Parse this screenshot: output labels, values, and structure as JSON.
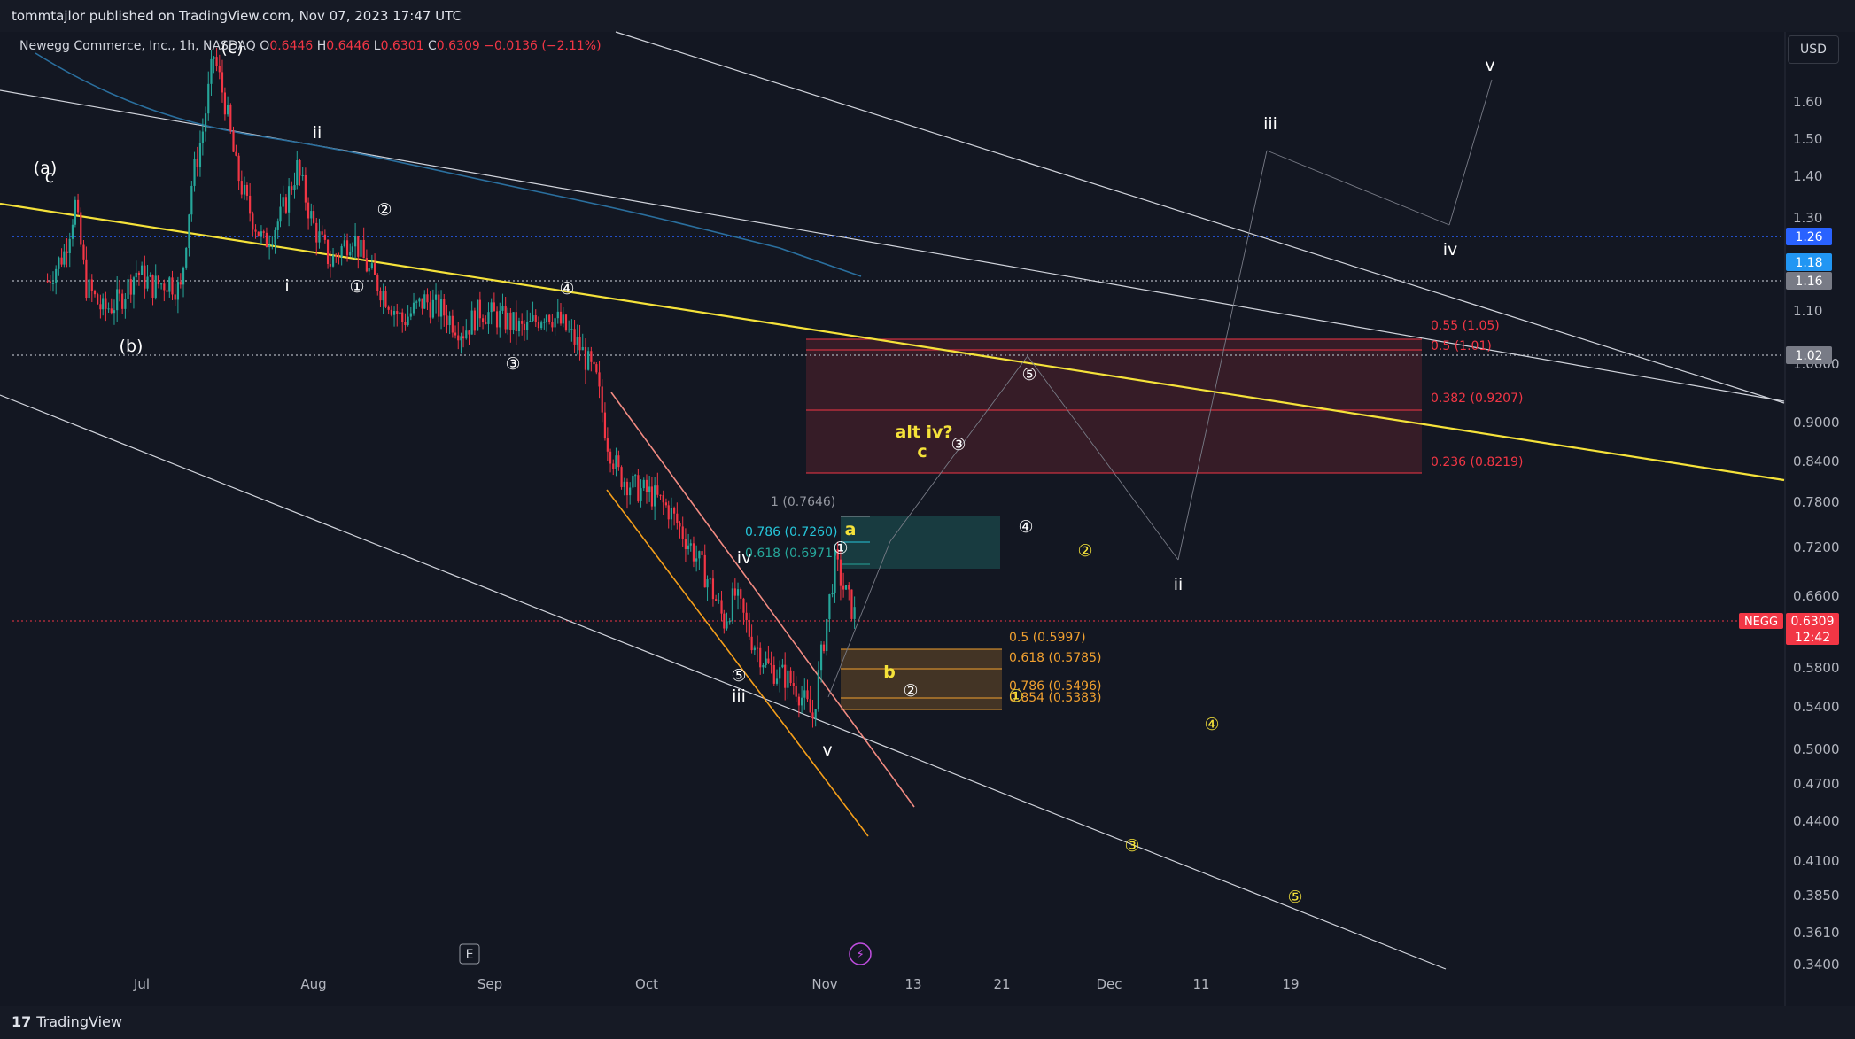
{
  "header": {
    "publisher": "tommtajlor published on TradingView.com, Nov 07, 2023 17:47 UTC"
  },
  "legend": {
    "symbol": "Newegg Commerce, Inc., 1h, NASDAQ",
    "o_label": "O",
    "o": "0.6446",
    "h_label": "H",
    "h": "0.6446",
    "l_label": "L",
    "l": "0.6301",
    "c_label": "C",
    "c": "0.6309",
    "change": "−0.0136 (−2.11%)"
  },
  "currency": "USD",
  "brand": {
    "logo": "17",
    "name": "TradingView"
  },
  "colors": {
    "background": "#131722",
    "up": "#26a69a",
    "down": "#f23645",
    "yellow_line": "#f5e23a",
    "fib_red": "#f23645",
    "fib_orange": "#f0a030",
    "channel_pink": "#f08ccc",
    "channel_orange": "#f59f1a",
    "ma": "#2a6f9e"
  },
  "chart_data": {
    "type": "line",
    "symbol": "NEGG",
    "interval": "1h",
    "y_scale": "log",
    "ylim": [
      0.33,
      1.78
    ],
    "grid": false,
    "x_tick_labels": [
      "Jul",
      "Aug",
      "Sep",
      "Oct",
      "Nov",
      "13",
      "21",
      "Dec",
      "11",
      "19"
    ],
    "y_tick_labels": [
      "1.60",
      "1.50",
      "1.40",
      "1.30",
      "1.10",
      "1.0000",
      "0.9000",
      "0.8400",
      "0.7800",
      "0.7200",
      "0.6600",
      "0.5800",
      "0.5400",
      "0.5000",
      "0.4700",
      "0.4400",
      "0.4100",
      "0.3850",
      "0.3610",
      "0.3400"
    ],
    "price_tags": [
      {
        "label": "1.26",
        "value": 1.26,
        "color": "#2962ff"
      },
      {
        "label": "1.18",
        "value": 1.18,
        "color": "#2196f3"
      },
      {
        "label": "1.16",
        "value": 1.16,
        "color": "#787b86"
      },
      {
        "label": "1.02",
        "value": 1.02,
        "color": "#787b86"
      }
    ],
    "last_price": {
      "symbol": "NEGG",
      "value": "0.6309",
      "countdown": "12:42"
    },
    "price_series": [
      [
        "Jun 14",
        1.16
      ],
      [
        "Jun 17",
        1.22
      ],
      [
        "Jun 19",
        1.33
      ],
      [
        "Jun 21",
        1.15
      ],
      [
        "Jun 24",
        1.1
      ],
      [
        "Jun 27",
        1.12
      ],
      [
        "Jun 30",
        1.18
      ],
      [
        "Jul 3",
        1.15
      ],
      [
        "Jul 6",
        1.16
      ],
      [
        "Jul 8",
        1.14
      ],
      [
        "Jul 10",
        1.38
      ],
      [
        "Jul 12",
        1.52
      ],
      [
        "Jul 14",
        1.74
      ],
      [
        "Jul 16",
        1.6
      ],
      [
        "Jul 18",
        1.42
      ],
      [
        "Jul 20",
        1.33
      ],
      [
        "Jul 23",
        1.24
      ],
      [
        "Jul 26",
        1.3
      ],
      [
        "Jul 29",
        1.42
      ],
      [
        "Aug 1",
        1.28
      ],
      [
        "Aug 4",
        1.2
      ],
      [
        "Aug 8",
        1.26
      ],
      [
        "Aug 11",
        1.18
      ],
      [
        "Aug 14",
        1.13
      ],
      [
        "Aug 17",
        1.08
      ],
      [
        "Aug 21",
        1.12
      ],
      [
        "Aug 24",
        1.1
      ],
      [
        "Aug 28",
        1.06
      ],
      [
        "Aug 31",
        1.1
      ],
      [
        "Sep 5",
        1.08
      ],
      [
        "Sep 8",
        1.06
      ],
      [
        "Sep 12",
        1.1
      ],
      [
        "Sep 15",
        1.07
      ],
      [
        "Sep 18",
        1.03
      ],
      [
        "Sep 21",
        0.97
      ],
      [
        "Sep 23",
        0.87
      ],
      [
        "Sep 25",
        0.82
      ],
      [
        "Sep 28",
        0.8
      ],
      [
        "Oct 1",
        0.79
      ],
      [
        "Oct 4",
        0.77
      ],
      [
        "Oct 8",
        0.72
      ],
      [
        "Oct 11",
        0.68
      ],
      [
        "Oct 14",
        0.63
      ],
      [
        "Oct 16",
        0.66
      ],
      [
        "Oct 19",
        0.61
      ],
      [
        "Oct 22",
        0.58
      ],
      [
        "Oct 25",
        0.57
      ],
      [
        "Oct 27",
        0.56
      ],
      [
        "Oct 30",
        0.53
      ],
      [
        "Nov 1",
        0.61
      ],
      [
        "Nov 3",
        0.7
      ],
      [
        "Nov 5",
        0.66
      ],
      [
        "Nov 7",
        0.6309
      ]
    ],
    "fib_levels": [
      {
        "label": "0.55 (1.05)",
        "value": 1.05,
        "color": "#f23645"
      },
      {
        "label": "0.5 (1.01)",
        "value": 1.01,
        "color": "#f23645"
      },
      {
        "label": "0.382 (0.9207)",
        "value": 0.9207,
        "color": "#f23645"
      },
      {
        "label": "0.236 (0.8219)",
        "value": 0.8219,
        "color": "#f23645"
      },
      {
        "label": "1 (0.7646)",
        "value": 0.7646,
        "color": "#9598a1"
      },
      {
        "label": "0.786 (0.7260)",
        "value": 0.726,
        "color": "#26c6da"
      },
      {
        "label": "0.618 (0.6971)",
        "value": 0.6971,
        "color": "#26a69a"
      },
      {
        "label": "0.5 (0.5997)",
        "value": 0.5997,
        "color": "#f0a030"
      },
      {
        "label": "0.618 (0.5785)",
        "value": 0.5785,
        "color": "#f0a030"
      },
      {
        "label": "0.786 (0.5496)",
        "value": 0.5496,
        "color": "#f0a030"
      },
      {
        "label": "0.854 (0.5383)",
        "value": 0.5383,
        "color": "#f0a030"
      }
    ],
    "wave_labels": [
      {
        "text": "(a)",
        "color": "#ffffff"
      },
      {
        "text": "c",
        "color": "#ffffff"
      },
      {
        "text": "(c)",
        "color": "#ffffff"
      },
      {
        "text": "ii",
        "color": "#ffffff"
      },
      {
        "text": "i",
        "color": "#ffffff"
      },
      {
        "text": "(b)",
        "color": "#ffffff"
      },
      {
        "text": "iii",
        "color": "#ffffff"
      },
      {
        "text": "iv",
        "color": "#ffffff"
      },
      {
        "text": "v",
        "color": "#ffffff"
      },
      {
        "text": "a",
        "color": "#f5e23a"
      },
      {
        "text": "b",
        "color": "#f5e23a"
      },
      {
        "text": "alt iv?",
        "color": "#f5e23a"
      },
      {
        "text": "c",
        "color": "#f5e23a"
      },
      {
        "text": "ii",
        "color": "#ffffff"
      },
      {
        "text": "iii",
        "color": "#ffffff"
      },
      {
        "text": "iv",
        "color": "#ffffff"
      },
      {
        "text": "v",
        "color": "#ffffff"
      }
    ],
    "circled_labels": [
      {
        "text": "①",
        "color": "#ffffff"
      },
      {
        "text": "②",
        "color": "#ffffff"
      },
      {
        "text": "③",
        "color": "#ffffff"
      },
      {
        "text": "④",
        "color": "#ffffff"
      },
      {
        "text": "⑤",
        "color": "#ffffff"
      },
      {
        "text": "①",
        "color": "#ffffff"
      },
      {
        "text": "②",
        "color": "#ffffff"
      },
      {
        "text": "③",
        "color": "#ffffff"
      },
      {
        "text": "④",
        "color": "#ffffff"
      },
      {
        "text": "⑤",
        "color": "#ffffff"
      },
      {
        "text": "①",
        "color": "#f5e23a"
      },
      {
        "text": "②",
        "color": "#f5e23a"
      },
      {
        "text": "③",
        "color": "#f5e23a"
      },
      {
        "text": "④",
        "color": "#f5e23a"
      },
      {
        "text": "⑤",
        "color": "#f5e23a"
      }
    ],
    "markers": [
      {
        "text": "E"
      },
      {
        "text": "⚡"
      }
    ]
  }
}
